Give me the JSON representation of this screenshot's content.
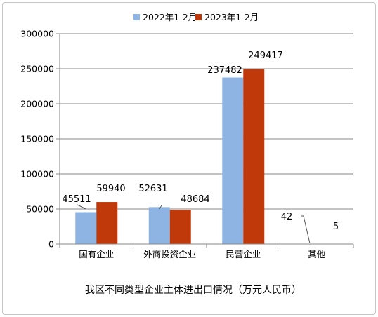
{
  "chart_data": {
    "type": "bar",
    "title": "我区不同类型企业主体进出口情况（万元人民币）",
    "categories": [
      "国有企业",
      "外商投资企业",
      "民营企业",
      "其他"
    ],
    "series": [
      {
        "name": "2022年1-2月",
        "color": "#8eb4e3",
        "values": [
          45511,
          52631,
          237482,
          42
        ]
      },
      {
        "name": "2023年1-2月",
        "color": "#c0390b",
        "values": [
          59940,
          48684,
          249417,
          5
        ]
      }
    ],
    "ylim": [
      0,
      300000
    ],
    "yticks": [
      "0",
      "50000",
      "100000",
      "150000",
      "200000",
      "250000",
      "300000"
    ],
    "xlabel": "",
    "ylabel": "",
    "legend": "top",
    "grid": true
  }
}
